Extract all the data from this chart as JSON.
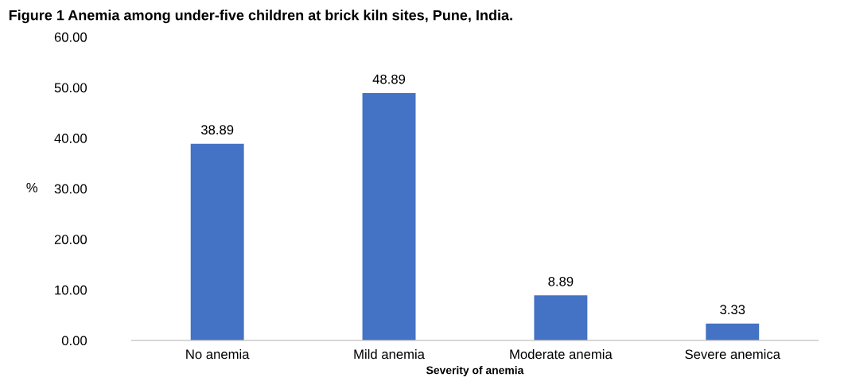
{
  "chart_data": {
    "type": "bar",
    "title": "Figure 1 Anemia among under-five children at brick kiln sites, Pune, India.",
    "xlabel": "Severity of anemia",
    "ylabel": "%",
    "categories": [
      "No anemia",
      "Mild anemia",
      "Moderate anemia",
      "Severe anemica"
    ],
    "values": [
      38.89,
      48.89,
      8.89,
      3.33
    ],
    "color": "#4472c4",
    "data_labels": true,
    "ylim": [
      0,
      60
    ],
    "yticks": [
      {
        "value": 0,
        "label": "0.00"
      },
      {
        "value": 10,
        "label": "10.00"
      },
      {
        "value": 20,
        "label": "20.00"
      },
      {
        "value": 30,
        "label": "30.00"
      },
      {
        "value": 40,
        "label": "40.00"
      },
      {
        "value": 50,
        "label": "50.00"
      },
      {
        "value": 60,
        "label": "60.00"
      }
    ],
    "grid": false
  }
}
